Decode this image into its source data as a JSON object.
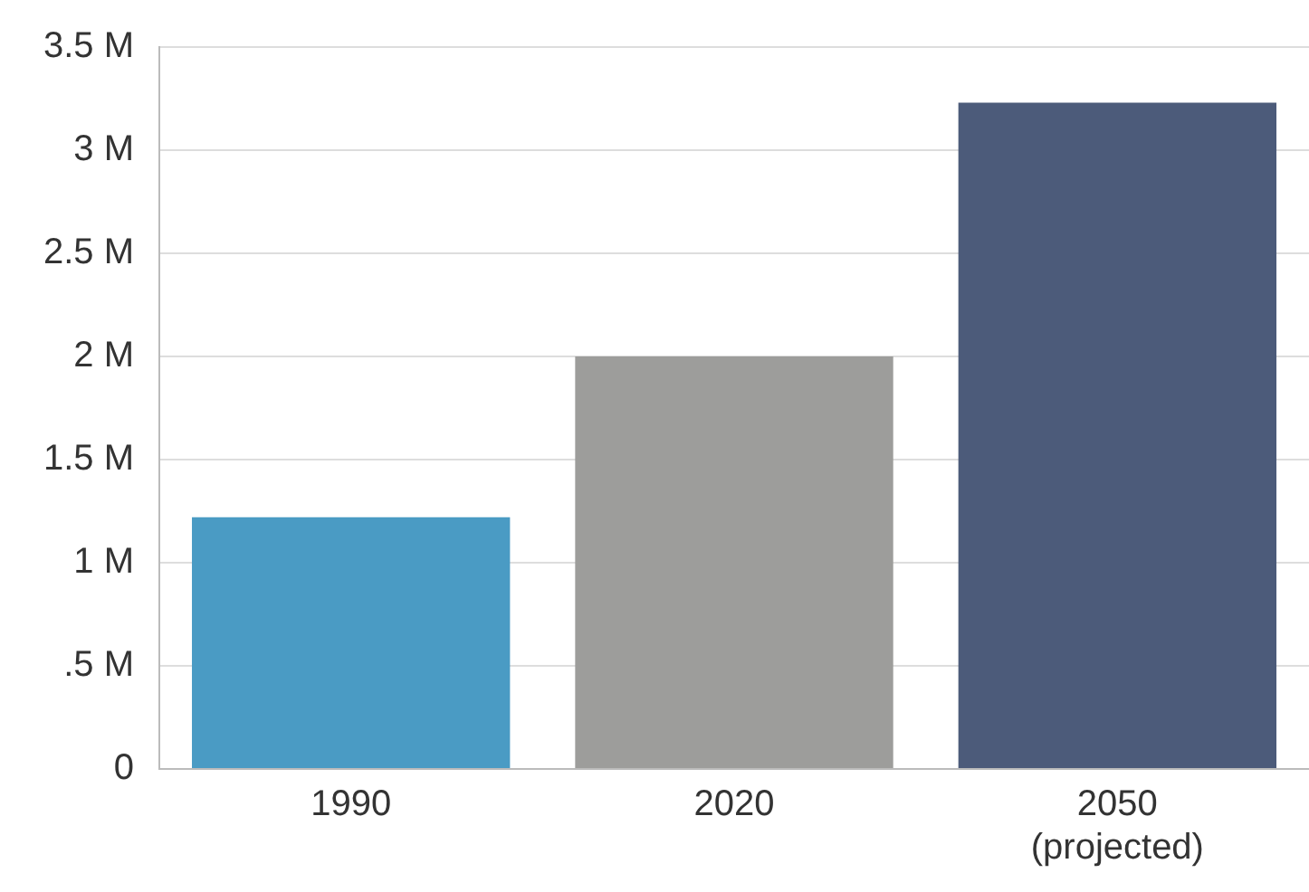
{
  "chart_data": {
    "type": "bar",
    "categories": [
      "1990",
      "2020",
      "2050\n(projected)"
    ],
    "values": [
      1.22,
      2.0,
      3.23
    ],
    "colors": [
      "#4a9bc4",
      "#9d9d9b",
      "#4c5b7a"
    ],
    "ylim": [
      0,
      3.5
    ],
    "yticks": [
      {
        "value": 0,
        "label": "0"
      },
      {
        "value": 0.5,
        "label": ".5 M"
      },
      {
        "value": 1,
        "label": "1 M"
      },
      {
        "value": 1.5,
        "label": "1.5 M"
      },
      {
        "value": 2,
        "label": "2 M"
      },
      {
        "value": 2.5,
        "label": "2.5 M"
      },
      {
        "value": 3,
        "label": "3 M"
      },
      {
        "value": 3.5,
        "label": "3.5 M"
      }
    ],
    "grid": "y",
    "legend": false
  }
}
